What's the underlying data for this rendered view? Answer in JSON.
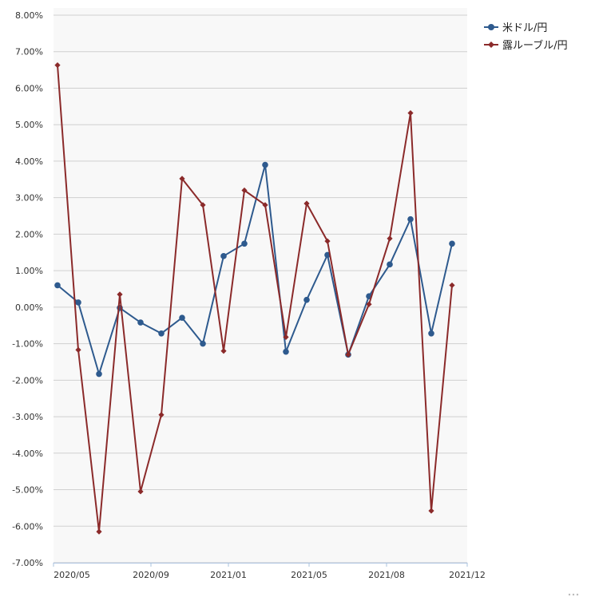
{
  "chart_data": {
    "type": "line",
    "title": "",
    "xlabel": "",
    "ylabel": "",
    "ylim": [
      -7.0,
      8.0
    ],
    "y_ticks": [
      "8.00%",
      "7.00%",
      "6.00%",
      "5.00%",
      "4.00%",
      "3.00%",
      "2.00%",
      "1.00%",
      "0.00%",
      "-1.00%",
      "-2.00%",
      "-3.00%",
      "-4.00%",
      "-5.00%",
      "-6.00%",
      "-7.00%"
    ],
    "x_tick_labels": [
      "2020/05",
      "2020/09",
      "2021/01",
      "2021/05",
      "2021/08",
      "2021/12"
    ],
    "legend_position": "top-right",
    "series": [
      {
        "name": "米ドル/円",
        "color": "#2e5a8e",
        "marker": "circle",
        "values": [
          0.6,
          0.13,
          -1.83,
          -0.02,
          -0.42,
          -0.72,
          -0.29,
          -1.0,
          1.4,
          1.74,
          3.9,
          -1.22,
          0.2,
          1.43,
          -1.3,
          0.3,
          1.17,
          2.41,
          -0.72,
          1.74
        ]
      },
      {
        "name": "露ルーブル/円",
        "color": "#8b2a2a",
        "marker": "diamond",
        "values": [
          6.63,
          -1.17,
          -6.15,
          0.35,
          -5.05,
          -2.95,
          3.52,
          2.8,
          -1.2,
          3.2,
          2.8,
          -0.82,
          2.84,
          1.81,
          -1.3,
          0.08,
          1.88,
          5.32,
          -5.58,
          0.6
        ]
      }
    ]
  }
}
